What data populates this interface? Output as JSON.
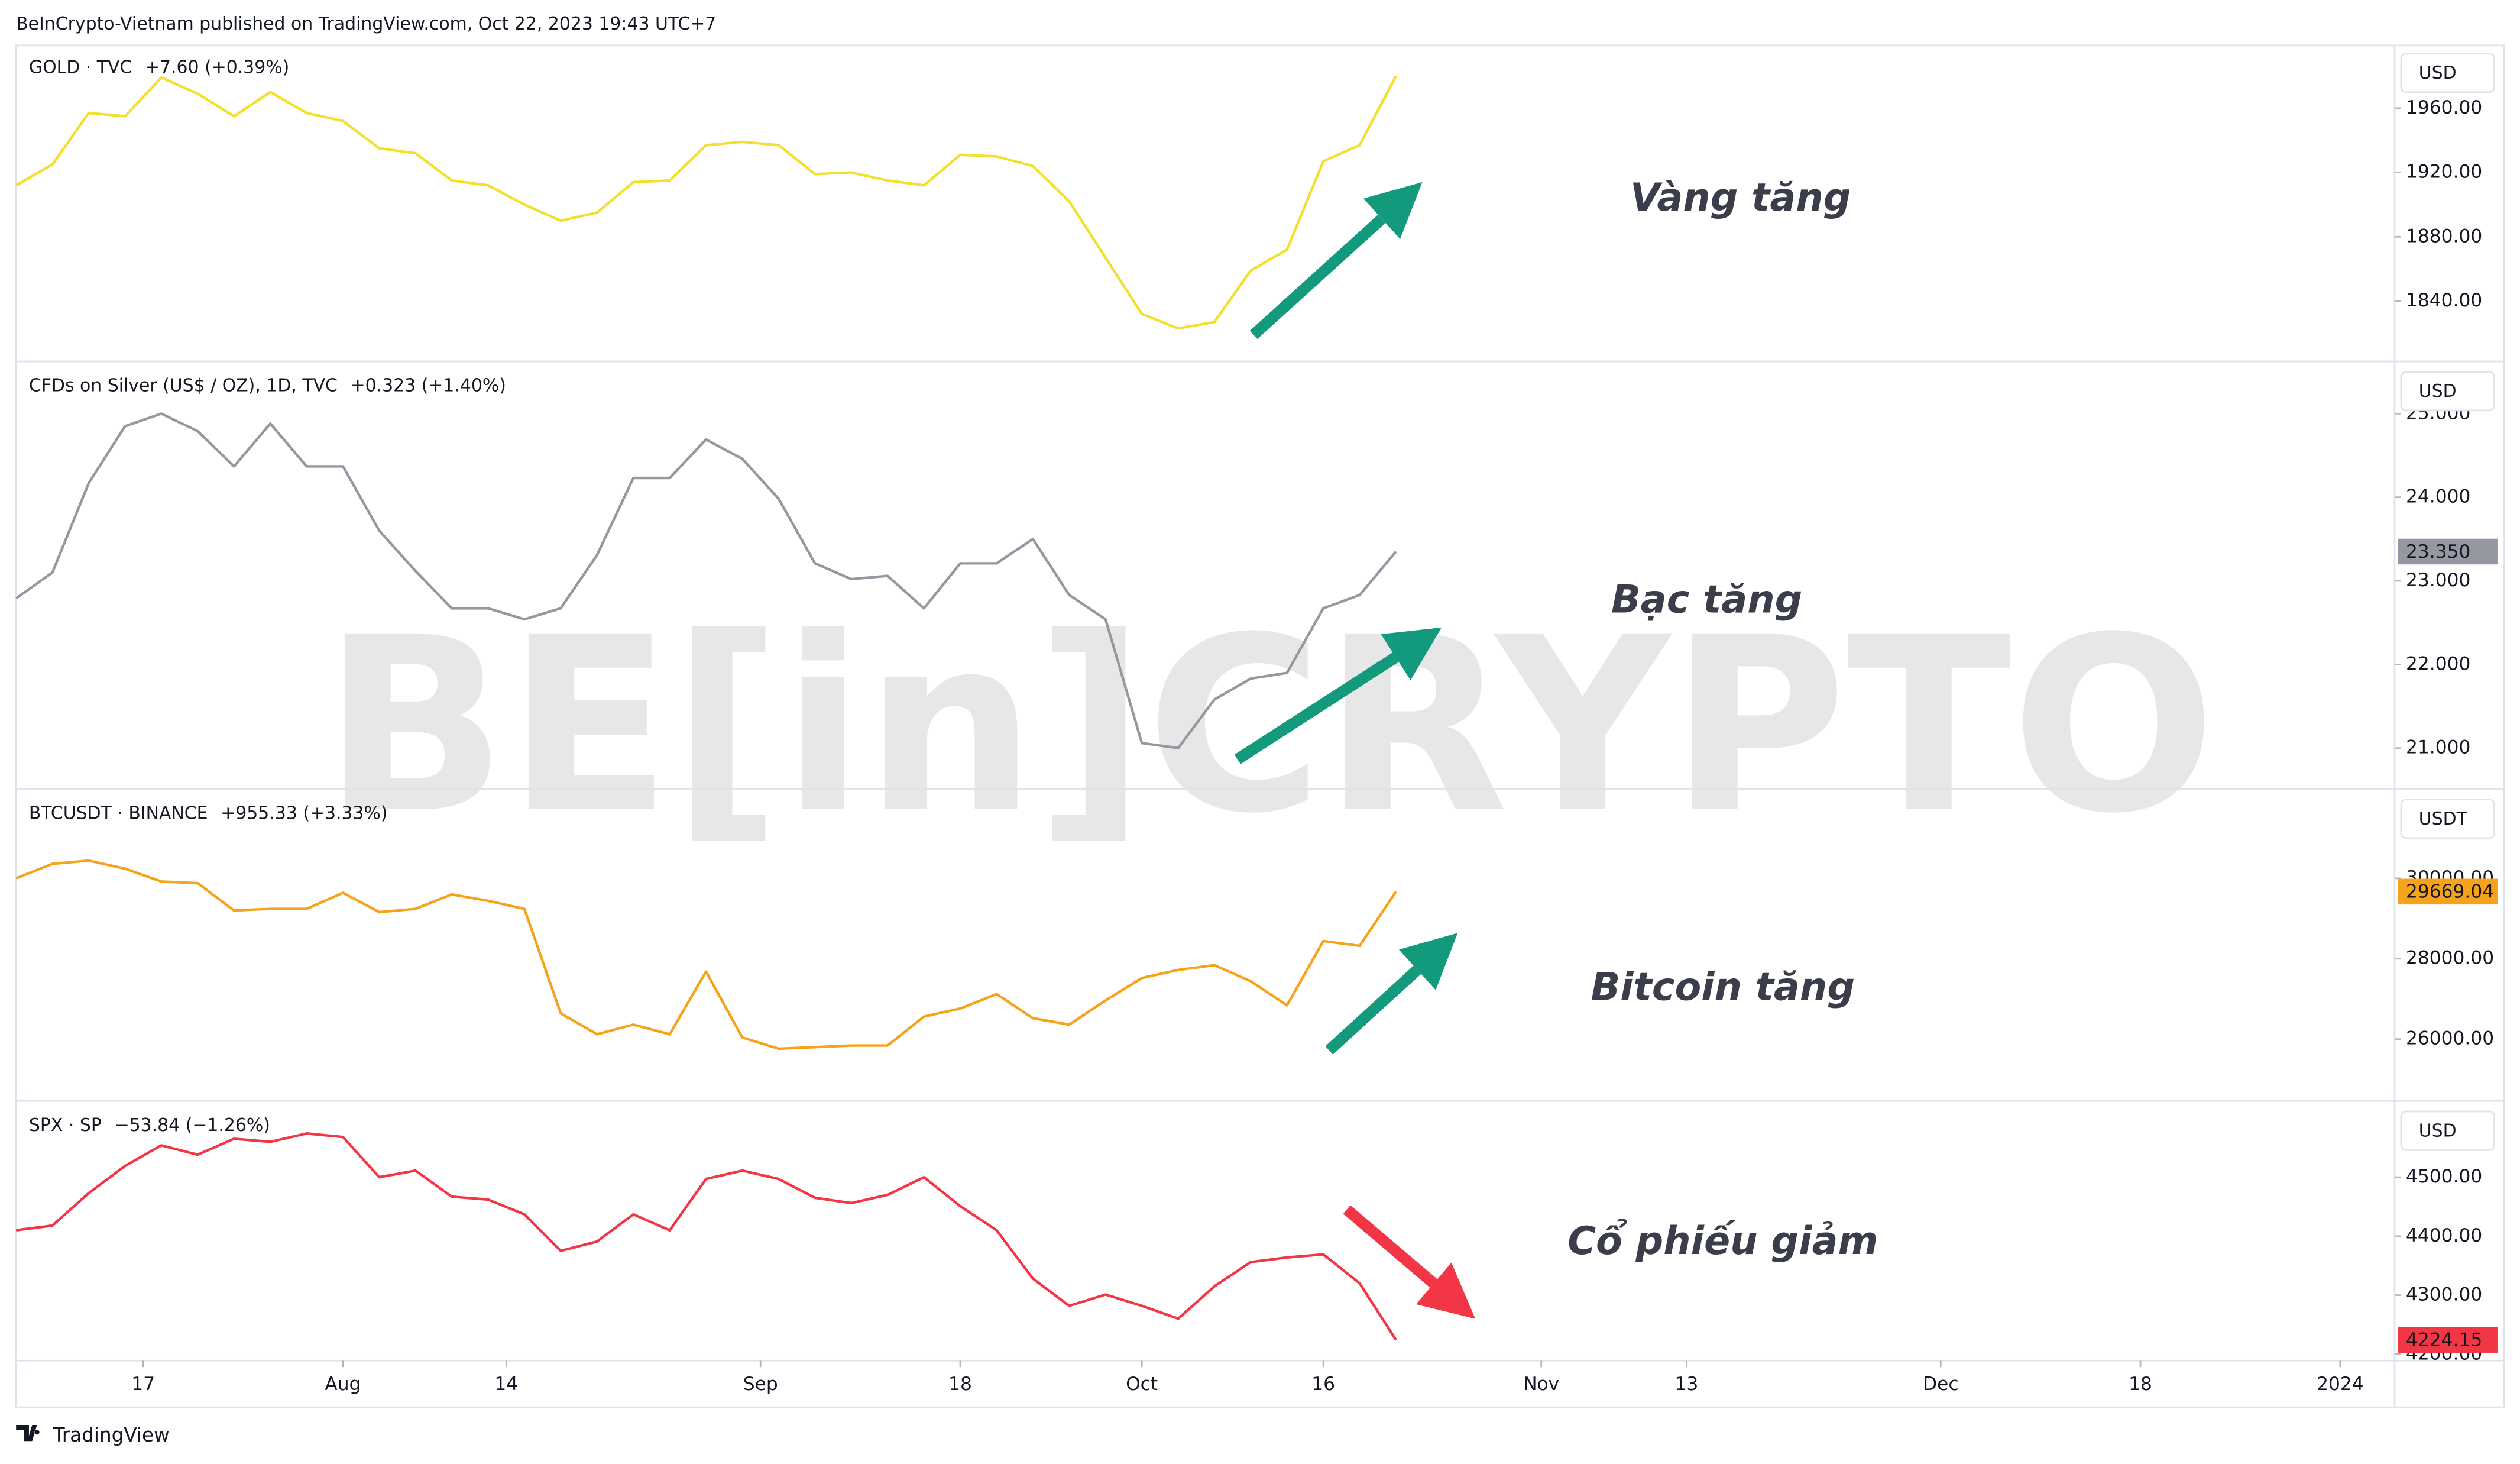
{
  "header": "BeInCrypto-Vietnam published on TradingView.com, Oct 22, 2023 19:43 UTC+7",
  "footer": "TradingView",
  "watermark": "BE[in]CRYPTO",
  "chart_data": [
    {
      "type": "line",
      "title": "GOLD · TVC",
      "change": "+7.60 (+0.39%)",
      "currency": "USD",
      "annotation": "Vàng tăng",
      "color": "#f2df2e",
      "x": [
        0,
        2,
        4,
        6,
        8,
        10,
        12,
        14,
        16,
        18,
        20,
        22,
        24,
        26,
        28,
        30,
        32,
        34,
        36,
        38,
        40,
        42,
        44,
        46,
        48,
        50,
        52,
        54,
        56,
        58,
        60,
        62,
        64,
        66,
        68,
        70,
        72,
        74,
        76
      ],
      "values": [
        1912,
        1925,
        1957,
        1955,
        1979,
        1969,
        1955,
        1970,
        1957,
        1952,
        1935,
        1932,
        1915,
        1912,
        1900,
        1890,
        1895,
        1914,
        1915,
        1937,
        1939,
        1937,
        1919,
        1920,
        1915,
        1912,
        1931,
        1930,
        1924,
        1902,
        1867,
        1832,
        1823,
        1827,
        1859,
        1872,
        1927,
        1937,
        1980
      ],
      "xlim": [
        0,
        131
      ],
      "ylim": [
        1804,
        1999
      ],
      "yticks": [
        {
          "value": 1840,
          "label": "1840.00"
        },
        {
          "value": 1880,
          "label": "1880.00"
        },
        {
          "value": 1920,
          "label": "1920.00"
        },
        {
          "value": 1960,
          "label": "1960.00"
        }
      ]
    },
    {
      "type": "line",
      "title": "CFDs on Silver (US$ / OZ), 1D, TVC",
      "change": "+0.323 (+1.40%)",
      "currency": "USD",
      "annotation": "Bạc tăng",
      "color": "#9598a1",
      "x": [
        0,
        2,
        4,
        6,
        8,
        10,
        12,
        14,
        16,
        18,
        20,
        22,
        24,
        26,
        28,
        30,
        32,
        34,
        36,
        38,
        40,
        42,
        44,
        46,
        48,
        50,
        52,
        54,
        56,
        58,
        60,
        62,
        64,
        66,
        68,
        70,
        72,
        74,
        76
      ],
      "values": [
        22.79,
        23.1,
        24.17,
        24.85,
        25.0,
        24.79,
        24.37,
        24.88,
        24.37,
        24.37,
        23.6,
        23.12,
        22.67,
        22.67,
        22.54,
        22.67,
        23.31,
        24.23,
        24.23,
        24.69,
        24.46,
        23.98,
        23.21,
        23.02,
        23.06,
        22.67,
        23.21,
        23.21,
        23.5,
        22.83,
        22.54,
        21.06,
        21.0,
        21.58,
        21.83,
        21.9,
        22.67,
        22.83,
        23.35
      ],
      "value_labels": [
        null,
        null,
        null,
        null,
        null,
        null,
        null,
        null,
        null,
        null,
        null,
        null,
        null,
        null,
        null,
        null,
        null,
        null,
        null,
        null,
        null,
        null,
        null,
        null,
        null,
        null,
        null,
        null,
        null,
        null,
        null,
        null,
        null,
        null,
        null,
        null,
        null,
        null,
        "23.350"
      ],
      "xlim": [
        0,
        131
      ],
      "ylim": [
        20.519,
        25.596
      ],
      "yticks": [
        {
          "value": 21,
          "label": "21.000"
        },
        {
          "value": 22,
          "label": "22.000"
        },
        {
          "value": 23,
          "label": "23.000"
        },
        {
          "value": 24,
          "label": "24.000"
        },
        {
          "value": 25,
          "label": "25.000"
        }
      ]
    },
    {
      "type": "line",
      "title": "BTCUSDT · BINANCE",
      "change": "+955.33 (+3.33%)",
      "currency": "USDT",
      "annotation": "Bitcoin tăng",
      "color": "#f7a21b",
      "x": [
        0,
        2,
        4,
        6,
        8,
        10,
        12,
        14,
        16,
        18,
        20,
        22,
        24,
        26,
        28,
        30,
        32,
        34,
        36,
        38,
        40,
        42,
        44,
        46,
        48,
        50,
        52,
        54,
        56,
        58,
        60,
        62,
        64,
        66,
        68,
        70,
        72,
        74,
        76
      ],
      "values": [
        30000,
        30360,
        30440,
        30240,
        29920,
        29880,
        29200,
        29240,
        29240,
        29640,
        29160,
        29240,
        29600,
        29440,
        29240,
        26640,
        26120,
        26360,
        26120,
        27680,
        26040,
        25760,
        25800,
        25840,
        25840,
        26560,
        26760,
        27120,
        26520,
        26360,
        26960,
        27520,
        27720,
        27840,
        27440,
        26840,
        28440,
        28320,
        29669.04
      ],
      "value_labels": [
        null,
        null,
        null,
        null,
        null,
        null,
        null,
        null,
        null,
        null,
        null,
        null,
        null,
        null,
        null,
        null,
        null,
        null,
        null,
        null,
        null,
        null,
        null,
        null,
        null,
        null,
        null,
        null,
        null,
        null,
        null,
        null,
        null,
        null,
        null,
        null,
        null,
        null,
        "29669.04"
      ],
      "xlim": [
        0,
        131
      ],
      "ylim": [
        24520,
        32160
      ],
      "yticks": [
        {
          "value": 26000,
          "label": "26000.00"
        },
        {
          "value": 28000,
          "label": "28000.00"
        },
        {
          "value": 30000,
          "label": "30000.00"
        }
      ]
    },
    {
      "type": "line",
      "title": "SPX · SP",
      "change": "−53.84 (−1.26%)",
      "currency": "USD",
      "annotation": "Cổ phiếu giảm",
      "color": "#f23645",
      "x": [
        0,
        2,
        4,
        6,
        8,
        10,
        12,
        14,
        16,
        18,
        20,
        22,
        24,
        26,
        28,
        30,
        32,
        34,
        36,
        38,
        40,
        42,
        44,
        46,
        48,
        50,
        52,
        54,
        56,
        58,
        60,
        62,
        64,
        66,
        68,
        70,
        72,
        74,
        76
      ],
      "values": [
        4410,
        4418,
        4473,
        4519,
        4554,
        4538,
        4565,
        4560,
        4574,
        4568,
        4500,
        4511,
        4467,
        4462,
        4437,
        4375,
        4391,
        4437,
        4410,
        4497,
        4511,
        4497,
        4465,
        4456,
        4470,
        4500,
        4451,
        4410,
        4328,
        4282,
        4301,
        4282,
        4260,
        4315,
        4356,
        4364,
        4369,
        4320,
        4224.15
      ],
      "value_labels": [
        null,
        null,
        null,
        null,
        null,
        null,
        null,
        null,
        null,
        null,
        null,
        null,
        null,
        null,
        null,
        null,
        null,
        null,
        null,
        null,
        null,
        null,
        null,
        null,
        null,
        null,
        null,
        null,
        null,
        null,
        null,
        null,
        null,
        null,
        null,
        null,
        null,
        null,
        "4224.15"
      ],
      "xlim": [
        0,
        131
      ],
      "ylim": [
        4189,
        4625
      ],
      "yticks": [
        {
          "value": 4200,
          "label": "4200.00"
        },
        {
          "value": 4300,
          "label": "4300.00"
        },
        {
          "value": 4400,
          "label": "4400.00"
        },
        {
          "value": 4500,
          "label": "4500.00"
        }
      ],
      "xticks": [
        {
          "value": 7,
          "label": "17"
        },
        {
          "value": 18,
          "label": "Aug"
        },
        {
          "value": 27,
          "label": "14"
        },
        {
          "value": 41,
          "label": "Sep"
        },
        {
          "value": 52,
          "label": "18"
        },
        {
          "value": 62,
          "label": "Oct"
        },
        {
          "value": 72,
          "label": "16"
        },
        {
          "value": 84,
          "label": "Nov"
        },
        {
          "value": 92,
          "label": "13"
        },
        {
          "value": 106,
          "label": "Dec"
        },
        {
          "value": 117,
          "label": "18"
        },
        {
          "value": 128,
          "label": "2024"
        }
      ]
    }
  ]
}
